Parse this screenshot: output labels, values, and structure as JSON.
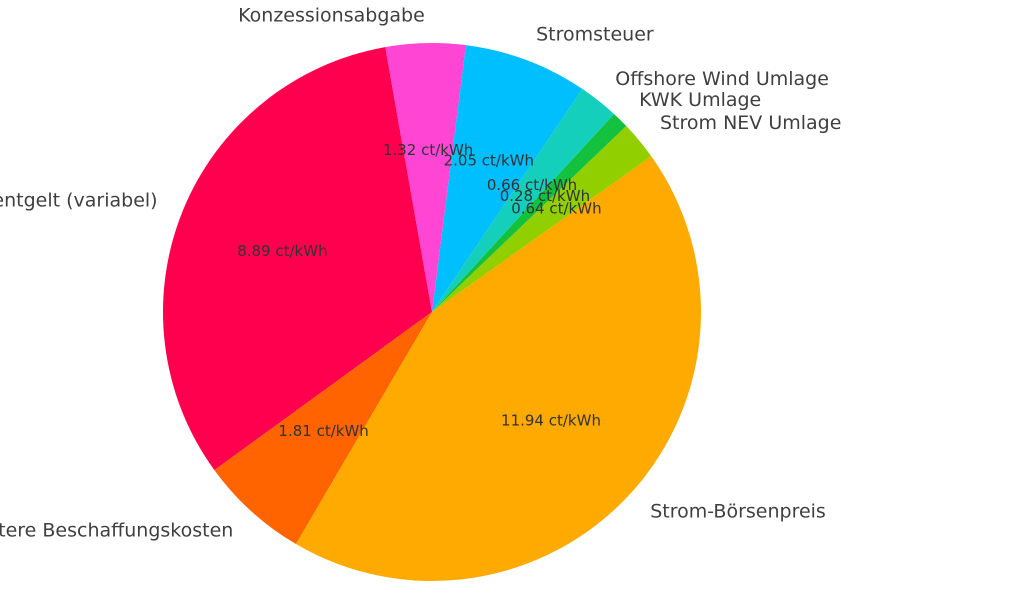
{
  "chart_data": {
    "type": "pie",
    "title": "",
    "slices": [
      {
        "label": "Netznutzungsentgelt (variabel)",
        "value_label": "8.89 ct/kWh",
        "value": 8.89,
        "color": "#ff004f"
      },
      {
        "label": "Weitere Beschaffungskosten",
        "value_label": "1.81 ct/kWh",
        "value": 1.81,
        "color": "#ff6400"
      },
      {
        "label": "Strom-Börsenpreis",
        "value_label": "11.94 ct/kWh",
        "value": 11.94,
        "color": "#ffaa00"
      },
      {
        "label": "Strom NEV Umlage",
        "value_label": "0.64 ct/kWh",
        "value": 0.64,
        "color": "#92cf00"
      },
      {
        "label": "KWK Umlage",
        "value_label": "0.28 ct/kWh",
        "value": 0.28,
        "color": "#13c13e"
      },
      {
        "label": "Offshore Wind Umlage",
        "value_label": "0.66 ct/kWh",
        "value": 0.66,
        "color": "#14cfbb"
      },
      {
        "label": "Stromsteuer",
        "value_label": "2.05 ct/kWh",
        "value": 2.05,
        "color": "#00bfff"
      },
      {
        "label": "Konzessionsabgabe",
        "value_label": "1.32 ct/kWh",
        "value": 1.32,
        "color": "#ff45d4"
      }
    ]
  }
}
